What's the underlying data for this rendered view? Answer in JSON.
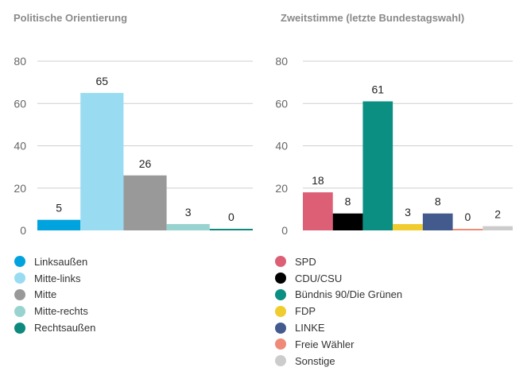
{
  "chart_data": [
    {
      "type": "bar",
      "title": "Politische Orientierung",
      "categories": [
        "Linksaußen",
        "Mitte-links",
        "Mitte",
        "Mitte-rechts",
        "Rechtsaußen"
      ],
      "values": [
        5,
        65,
        26,
        3,
        0
      ],
      "colors": [
        "#00a3dd",
        "#99dcf2",
        "#999999",
        "#99d3cf",
        "#0d8a7d"
      ],
      "ylim": [
        0,
        80
      ],
      "yticks": [
        0,
        20,
        40,
        60,
        80
      ],
      "grid": true,
      "legend": "bottom"
    },
    {
      "type": "bar",
      "title": "Zweitstimme (letzte Bundestagswahl)",
      "categories": [
        "SPD",
        "CDU/CSU",
        "Bündnis 90/Die Grünen",
        "FDP",
        "LINKE",
        "Freie Wähler",
        "Sonstige"
      ],
      "values": [
        18,
        8,
        61,
        3,
        8,
        0,
        2
      ],
      "colors": [
        "#dc5f75",
        "#000000",
        "#0b8f82",
        "#f0cc2e",
        "#435a8e",
        "#f08a78",
        "#cccccc"
      ],
      "ylim": [
        0,
        80
      ],
      "yticks": [
        0,
        20,
        40,
        60,
        80
      ],
      "grid": true,
      "legend": "bottom"
    }
  ]
}
